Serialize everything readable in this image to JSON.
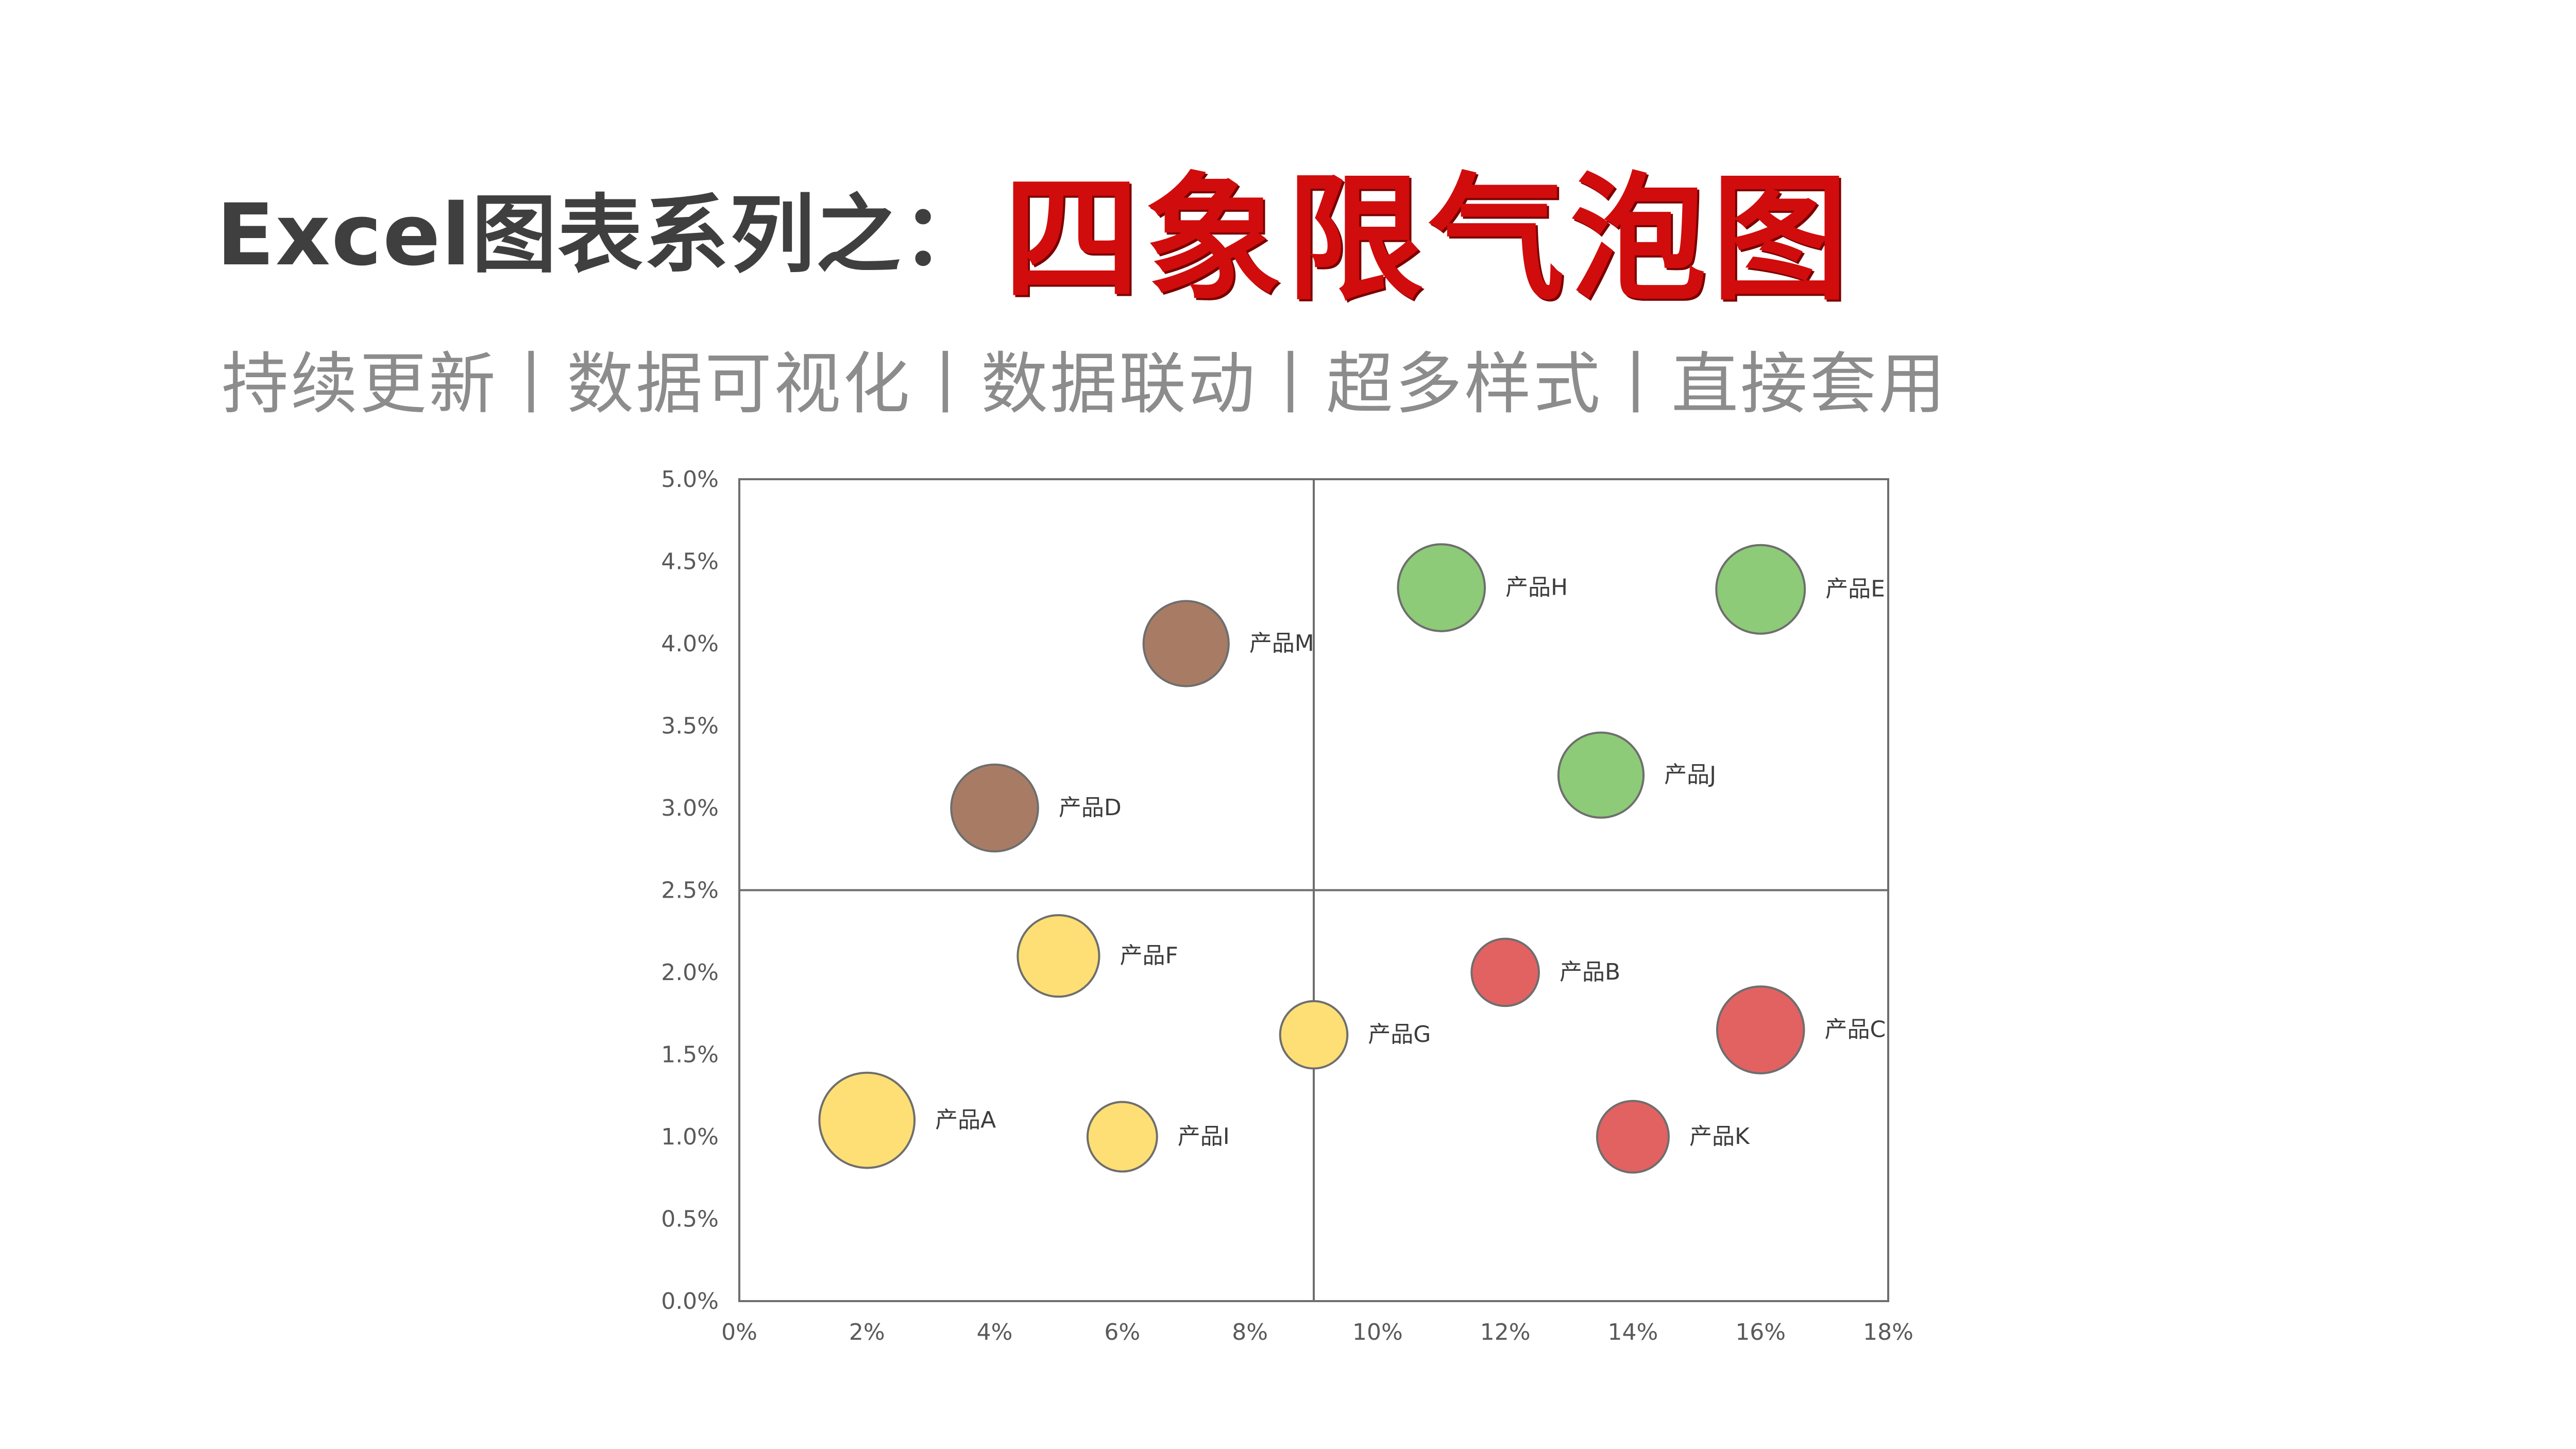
{
  "header": {
    "title_prefix": "Excel图表系列之：",
    "title_highlight": "四象限气泡图",
    "subtitle": "持续更新丨数据可视化丨数据联动丨超多样式丨直接套用"
  },
  "chart_data": {
    "type": "scatter",
    "subtype": "bubble",
    "title": "",
    "xlabel": "",
    "ylabel": "",
    "xlim": [
      0,
      18
    ],
    "ylim": [
      0,
      5
    ],
    "x_ticks": [
      "0%",
      "2%",
      "4%",
      "6%",
      "8%",
      "10%",
      "12%",
      "14%",
      "16%",
      "18%"
    ],
    "y_ticks": [
      "0.0%",
      "0.5%",
      "1.0%",
      "1.5%",
      "2.0%",
      "2.5%",
      "3.0%",
      "3.5%",
      "4.0%",
      "4.5%",
      "5.0%"
    ],
    "quadrant_divider": {
      "x": 9,
      "y": 2.5
    },
    "grid": false,
    "colors": {
      "yellow": "#fddf75",
      "red": "#e26262",
      "green": "#8dcb78",
      "brown": "#a87c64",
      "bubble_stroke": "#6e6e6e",
      "axis": "#6e6e6e"
    },
    "points": [
      {
        "label": "产品A",
        "x": 2,
        "y": 1.1,
        "size": 1.5,
        "color": "yellow"
      },
      {
        "label": "产品B",
        "x": 12,
        "y": 2.0,
        "size": 0.75,
        "color": "red"
      },
      {
        "label": "产品C",
        "x": 16,
        "y": 1.65,
        "size": 1.25,
        "color": "red"
      },
      {
        "label": "产品D",
        "x": 4,
        "y": 3.0,
        "size": 1.25,
        "color": "brown"
      },
      {
        "label": "产品E",
        "x": 16,
        "y": 4.33,
        "size": 1.3,
        "color": "green"
      },
      {
        "label": "产品F",
        "x": 5,
        "y": 2.1,
        "size": 1.1,
        "color": "yellow"
      },
      {
        "label": "产品G",
        "x": 9,
        "y": 1.62,
        "size": 0.75,
        "color": "yellow"
      },
      {
        "label": "产品H",
        "x": 11,
        "y": 4.34,
        "size": 1.25,
        "color": "green"
      },
      {
        "label": "产品I",
        "x": 6,
        "y": 1.0,
        "size": 0.8,
        "color": "yellow"
      },
      {
        "label": "产品J",
        "x": 13.5,
        "y": 3.2,
        "size": 1.2,
        "color": "green"
      },
      {
        "label": "产品K",
        "x": 14,
        "y": 1.0,
        "size": 0.85,
        "color": "red"
      },
      {
        "label": "产品M",
        "x": 7,
        "y": 4.0,
        "size": 1.2,
        "color": "brown"
      }
    ]
  }
}
